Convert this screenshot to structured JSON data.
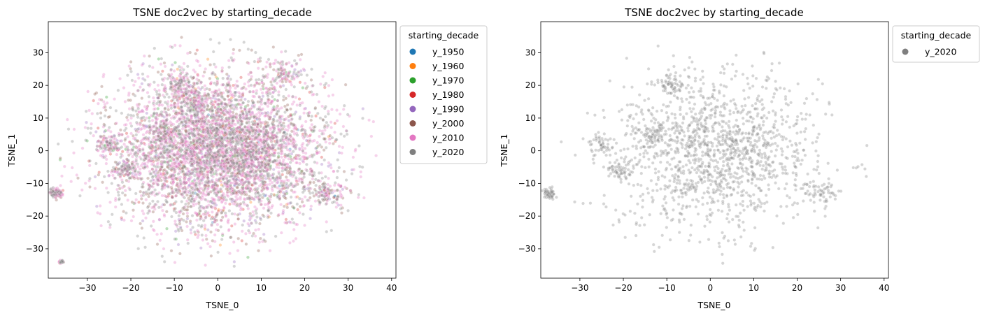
{
  "colors": {
    "y_1950": "#1f77b4",
    "y_1960": "#ff7f0e",
    "y_1970": "#2ca02c",
    "y_1980": "#d62728",
    "y_1990": "#9467bd",
    "y_2000": "#8c564b",
    "y_2010": "#e377c2",
    "y_2020": "#7f7f7f"
  },
  "chart_data": [
    {
      "type": "scatter",
      "title": "TSNE doc2vec by starting_decade",
      "xlabel": "TSNE_0",
      "ylabel": "TSNE_1",
      "xlim": [
        -39,
        41
      ],
      "ylim": [
        -39,
        39.5
      ],
      "xticks": [
        -30,
        -20,
        -10,
        0,
        10,
        20,
        30,
        40
      ],
      "yticks": [
        -30,
        -20,
        -10,
        0,
        10,
        20,
        30
      ],
      "xtick_labels": [
        "−30",
        "−20",
        "−10",
        "0",
        "10",
        "20",
        "30",
        "40"
      ],
      "ytick_labels": [
        "−30",
        "−20",
        "−10",
        "0",
        "10",
        "20",
        "30"
      ],
      "legend": {
        "title": "starting_decade",
        "placement": "outside-upper-right",
        "entries": [
          "y_1950",
          "y_1960",
          "y_1970",
          "y_1980",
          "y_1990",
          "y_2000",
          "y_2010",
          "y_2020"
        ]
      },
      "grid": false,
      "series": [
        {
          "name": "y_1950",
          "approx_count": 30
        },
        {
          "name": "y_1960",
          "approx_count": 40
        },
        {
          "name": "y_1970",
          "approx_count": 120
        },
        {
          "name": "y_1980",
          "approx_count": 200
        },
        {
          "name": "y_1990",
          "approx_count": 350
        },
        {
          "name": "y_2000",
          "approx_count": 1000
        },
        {
          "name": "y_2010",
          "approx_count": 2500
        },
        {
          "name": "y_2020",
          "approx_count": 1700
        }
      ],
      "clusters": [
        {
          "x": -37,
          "y": -13,
          "spread": 0.8
        },
        {
          "x": -25,
          "y": 2,
          "spread": 1.5
        },
        {
          "x": -21,
          "y": -6,
          "spread": 1.5
        },
        {
          "x": -13,
          "y": 5,
          "spread": 2
        },
        {
          "x": -9,
          "y": 20,
          "spread": 2
        },
        {
          "x": -5,
          "y": 15,
          "spread": 2
        },
        {
          "x": 0,
          "y": 3,
          "spread": 4
        },
        {
          "x": 10,
          "y": 3,
          "spread": 3
        },
        {
          "x": 8,
          "y": -3,
          "spread": 3
        },
        {
          "x": 25,
          "y": -13,
          "spread": 2
        },
        {
          "x": 16,
          "y": 24,
          "spread": 2
        },
        {
          "x": -36,
          "y": -34,
          "spread": 0.2
        }
      ]
    },
    {
      "type": "scatter",
      "title": "TSNE doc2vec by starting_decade",
      "xlabel": "TSNE_0",
      "ylabel": "TSNE_1",
      "xlim": [
        -39,
        41
      ],
      "ylim": [
        -39,
        39.5
      ],
      "xticks": [
        -30,
        -20,
        -10,
        0,
        10,
        20,
        30,
        40
      ],
      "yticks": [
        -30,
        -20,
        -10,
        0,
        10,
        20,
        30
      ],
      "xtick_labels": [
        "−30",
        "−20",
        "−10",
        "0",
        "10",
        "20",
        "30",
        "40"
      ],
      "ytick_labels": [
        "−30",
        "−20",
        "−10",
        "0",
        "10",
        "20",
        "30"
      ],
      "legend": {
        "title": "starting_decade",
        "placement": "outside-upper-right",
        "entries": [
          "y_2020"
        ]
      },
      "grid": false,
      "series": [
        {
          "name": "y_2020",
          "approx_count": 1700
        }
      ],
      "clusters": [
        {
          "x": -37,
          "y": -13,
          "spread": 0.8
        },
        {
          "x": -25,
          "y": 2,
          "spread": 1.5
        },
        {
          "x": -21,
          "y": -6,
          "spread": 1.5
        },
        {
          "x": -13,
          "y": 5,
          "spread": 2
        },
        {
          "x": -9,
          "y": 20,
          "spread": 2
        },
        {
          "x": 0,
          "y": 3,
          "spread": 4
        },
        {
          "x": 10,
          "y": 3,
          "spread": 3
        },
        {
          "x": 25,
          "y": -13,
          "spread": 2
        }
      ]
    }
  ]
}
